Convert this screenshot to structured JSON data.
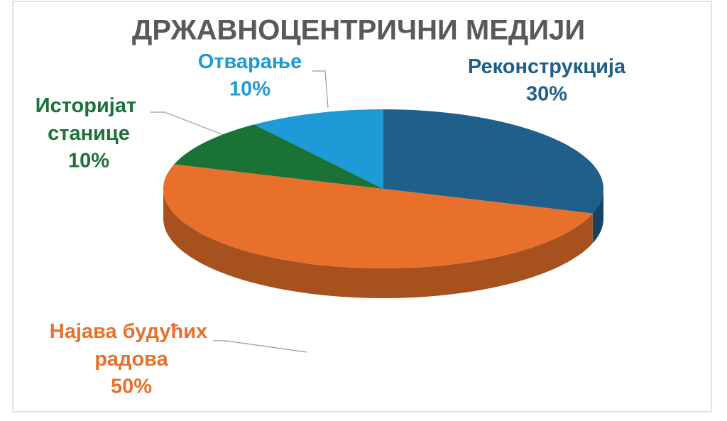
{
  "chart_data": {
    "type": "pie",
    "title": "ДРЖАВНОЦЕНТРИЧНИ МЕДИЈИ",
    "categories": [
      "Реконструкција",
      "Најава будућих радова",
      "Историјат станице",
      "Отварање"
    ],
    "values": [
      30,
      50,
      10,
      10
    ],
    "value_labels": [
      "30%",
      "50%",
      "10%",
      "10%"
    ],
    "colors": [
      "#1f5f8a",
      "#e8702b",
      "#1b7237",
      "#1e9bd7"
    ]
  }
}
